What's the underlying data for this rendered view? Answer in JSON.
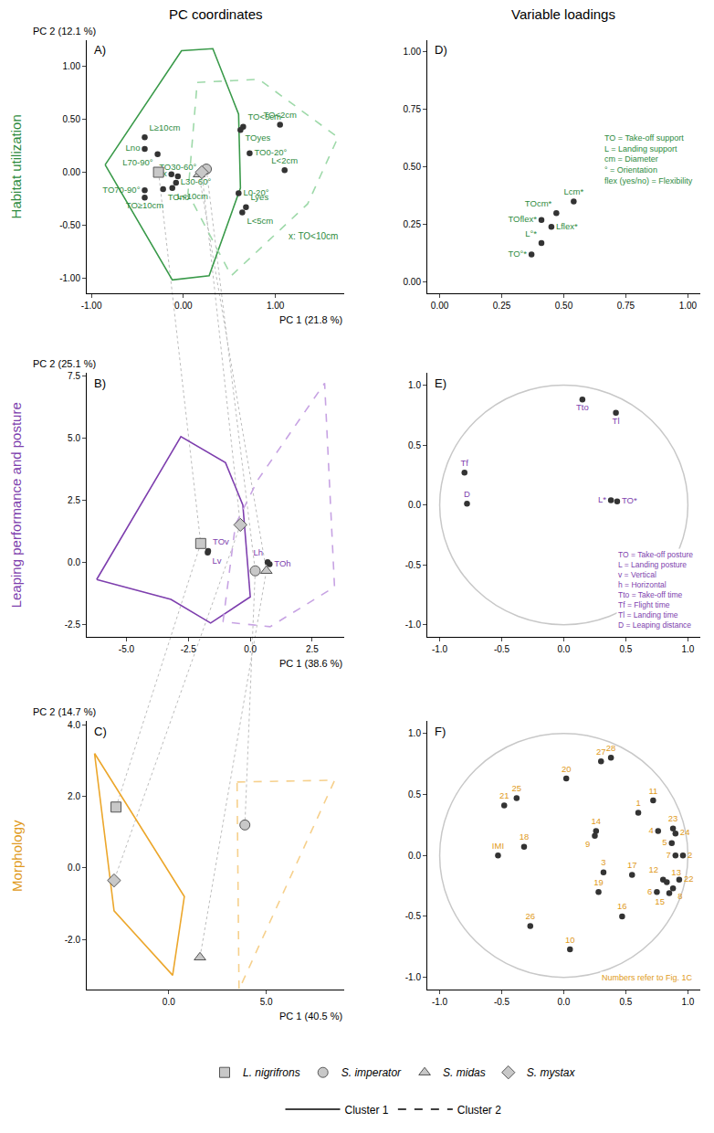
{
  "legend": "bottom",
  "legend_series": [
    {
      "name": "Cluster 1",
      "line_style": "solid",
      "color": "#000000"
    },
    {
      "name": "Cluster 2",
      "line_style": "dashed",
      "color": "#000000"
    }
  ],
  "chart_data": [
    {
      "panel": "A)",
      "type": "scatter",
      "row_title": "Habitat utilization",
      "column_title": "PC coordinates",
      "color": "#2e8b3e",
      "xlabel": "PC 1 (21.8 %)",
      "ylabel": "PC 2 (12.1 %)",
      "xlim": [
        -1.05,
        1.75
      ],
      "ylim": [
        -1.15,
        1.25
      ],
      "xticks": [
        {
          "value": -1,
          "label": "-1.00"
        },
        {
          "value": 0,
          "label": "0.00"
        },
        {
          "value": 1,
          "label": "1.00"
        }
      ],
      "yticks": [
        {
          "value": -1,
          "label": "-1.00"
        },
        {
          "value": -0.5,
          "label": "-0.50"
        },
        {
          "value": 0,
          "label": "0.00"
        },
        {
          "value": 0.5,
          "label": "0.50"
        },
        {
          "value": 1,
          "label": "1.00"
        }
      ],
      "grid": false,
      "notes": [
        "x: TO<10cm"
      ],
      "series": [
        {
          "type": "polygon",
          "name": "Cluster 1",
          "line_style": "solid",
          "color": "#3a9a4a",
          "x": [
            -0.85,
            -0.02,
            0.32,
            0.6,
            0.62,
            0.28,
            -0.12
          ],
          "y": [
            0.07,
            1.15,
            1.17,
            0.55,
            -0.15,
            -0.98,
            -1.02
          ]
        },
        {
          "type": "polygon",
          "name": "Cluster 2",
          "line_style": "dashed",
          "color": "#9ed9a9",
          "x": [
            0.15,
            0.82,
            1.68,
            1.35,
            0.52,
            0.05
          ],
          "y": [
            0.85,
            0.88,
            0.33,
            -0.3,
            -0.98,
            -0.2
          ]
        },
        {
          "type": "points",
          "color": "#333333",
          "labels": [
            "L≥10cm",
            "Lno",
            "L70-90°",
            "TO70-90°",
            "TO≥10cm",
            "TOno",
            "TO30-60°",
            "x",
            "L30-60°",
            "L<10cm",
            "TO0-20°",
            "L0-20°",
            "TO<5cm",
            "TOyes",
            "TO<2cm",
            "L<2cm",
            "Lyes",
            "L<5cm"
          ],
          "x": [
            -0.42,
            -0.42,
            -0.28,
            -0.42,
            -0.42,
            -0.22,
            -0.06,
            -0.13,
            -0.08,
            -0.12,
            0.72,
            0.6,
            0.65,
            0.62,
            1.05,
            1.1,
            0.68,
            0.64
          ],
          "y": [
            0.33,
            0.22,
            0.17,
            -0.17,
            -0.24,
            -0.16,
            -0.04,
            -0.02,
            -0.1,
            -0.15,
            0.18,
            -0.2,
            0.43,
            0.4,
            0.45,
            0.02,
            -0.33,
            -0.38
          ]
        },
        {
          "type": "species",
          "name": "L. nigrifrons",
          "marker": "square",
          "color": "#c8c8c8",
          "x": [
            -0.27
          ],
          "y": [
            0.0
          ]
        },
        {
          "type": "species",
          "name": "S. imperator",
          "marker": "circle",
          "color": "#c8c8c8",
          "x": [
            0.25
          ],
          "y": [
            0.03
          ]
        },
        {
          "type": "species",
          "name": "S. midas",
          "marker": "triangle",
          "color": "#c8c8c8",
          "x": [
            0.17
          ],
          "y": [
            -0.02
          ]
        },
        {
          "type": "species",
          "name": "S. mystax",
          "marker": "diamond",
          "color": "#c8c8c8",
          "x": [
            0.2
          ],
          "y": [
            0.0
          ]
        }
      ]
    },
    {
      "panel": "D)",
      "type": "scatter",
      "column_title": "Variable loadings",
      "color": "#2e8b3e",
      "xlim": [
        -0.05,
        1.05
      ],
      "ylim": [
        -0.05,
        1.05
      ],
      "xticks": [
        {
          "value": 0,
          "label": "0.00"
        },
        0.25,
        {
          "value": 0.5,
          "label": "0.50"
        },
        0.75,
        {
          "value": 1,
          "label": "1.00"
        }
      ],
      "yticks": [
        {
          "value": 0,
          "label": "0.00"
        },
        0.25,
        {
          "value": 0.5,
          "label": "0.50"
        },
        0.75,
        {
          "value": 1,
          "label": "1.00"
        }
      ],
      "grid": false,
      "notes": [
        "TO = Take-off support",
        "L = Landing support",
        "cm = Diameter",
        "° = Orientation",
        "flex (yes/no) = Flexibility"
      ],
      "series": [
        {
          "type": "points",
          "color": "#333333",
          "labels": [
            "Lcm*",
            "TOcm*",
            "TOflex*",
            "Lflex*",
            "L°*",
            "TO°*"
          ],
          "x": [
            0.54,
            0.47,
            0.41,
            0.45,
            0.41,
            0.37
          ],
          "y": [
            0.35,
            0.3,
            0.27,
            0.24,
            0.17,
            0.12
          ]
        }
      ]
    },
    {
      "panel": "B)",
      "type": "scatter",
      "row_title": "Leaping performance and posture",
      "color": "#7e3fae",
      "xlabel": "PC 1 (38.6 %)",
      "ylabel": "PC 2 (25.1 %)",
      "xlim": [
        -6.6,
        3.8
      ],
      "ylim": [
        -3.0,
        7.6
      ],
      "xticks": [
        {
          "value": -5,
          "label": "-5.0"
        },
        -2.5,
        {
          "value": 0,
          "label": "0.0"
        },
        2.5
      ],
      "yticks": [
        -2.5,
        {
          "value": 0,
          "label": "0.0"
        },
        2.5,
        {
          "value": 5,
          "label": "5.0"
        },
        7.5
      ],
      "grid": false,
      "series": [
        {
          "type": "polygon",
          "name": "Cluster 1",
          "line_style": "solid",
          "color": "#7e3fae",
          "x": [
            -6.2,
            -2.8,
            -1.0,
            -0.3,
            0.0,
            -1.6,
            -3.2
          ],
          "y": [
            -0.7,
            5.05,
            4.0,
            2.3,
            -1.4,
            -2.45,
            -1.5
          ]
        },
        {
          "type": "polygon",
          "name": "Cluster 2",
          "line_style": "dashed",
          "color": "#c7a3e3",
          "x": [
            -1.1,
            -0.6,
            0.3,
            3.0,
            3.4,
            0.8
          ],
          "y": [
            -2.4,
            1.5,
            3.3,
            7.2,
            -1.0,
            -2.6
          ]
        },
        {
          "type": "points",
          "color": "#333333",
          "labels": [
            "TOv",
            "Lv",
            "Lh",
            "TOh"
          ],
          "x": [
            -1.7,
            -1.72,
            0.7,
            0.78
          ],
          "y": [
            0.45,
            0.38,
            0.0,
            -0.08
          ]
        },
        {
          "type": "species",
          "name": "L. nigrifrons",
          "marker": "square",
          "color": "#c8c8c8",
          "x": [
            -2.0
          ],
          "y": [
            0.75
          ]
        },
        {
          "type": "species",
          "name": "S. imperator",
          "marker": "circle",
          "color": "#c8c8c8",
          "x": [
            0.2
          ],
          "y": [
            -0.35
          ]
        },
        {
          "type": "species",
          "name": "S. midas",
          "marker": "triangle",
          "color": "#c8c8c8",
          "x": [
            0.65
          ],
          "y": [
            -0.35
          ]
        },
        {
          "type": "species",
          "name": "S. mystax",
          "marker": "diamond",
          "color": "#c8c8c8",
          "x": [
            -0.4
          ],
          "y": [
            1.5
          ]
        }
      ]
    },
    {
      "panel": "E)",
      "type": "scatter",
      "color": "#7e3fae",
      "xlim": [
        -1.1,
        1.1
      ],
      "ylim": [
        -1.1,
        1.1
      ],
      "circle_radius": 1,
      "xticks": [
        {
          "value": -1,
          "label": "-1.0"
        },
        -0.5,
        {
          "value": 0,
          "label": "0.0"
        },
        0.5,
        {
          "value": 1,
          "label": "1.0"
        }
      ],
      "yticks": [
        {
          "value": -1,
          "label": "-1.0"
        },
        -0.5,
        {
          "value": 0,
          "label": "0.0"
        },
        0.5,
        {
          "value": 1,
          "label": "1.0"
        }
      ],
      "grid": false,
      "notes": [
        "TO = Take-off posture",
        "L = Landing posture",
        "v = Vertical",
        "h = Horizontal",
        "Tto = Take-off time",
        "Tf = Flight time",
        "Tl = Landing time",
        "D = Leaping distance"
      ],
      "series": [
        {
          "type": "points",
          "color": "#333333",
          "labels": [
            "Tto",
            "Tl",
            "Tf",
            "D",
            "L*",
            "TO*"
          ],
          "x": [
            0.15,
            0.42,
            -0.8,
            -0.78,
            0.38,
            0.43
          ],
          "y": [
            0.88,
            0.77,
            0.27,
            0.01,
            0.04,
            0.03
          ]
        }
      ]
    },
    {
      "panel": "C)",
      "type": "scatter",
      "row_title": "Morphology",
      "color": "#e09a20",
      "xlabel": "PC 1 (40.5 %)",
      "ylabel": "PC 2 (14.7 %)",
      "xlim": [
        -4.2,
        9.0
      ],
      "ylim": [
        -3.4,
        4.1
      ],
      "xticks": [
        {
          "value": 0,
          "label": "0.0"
        },
        {
          "value": 5,
          "label": "5.0"
        }
      ],
      "yticks": [
        {
          "value": -2,
          "label": "-2.0"
        },
        {
          "value": 0,
          "label": "0.0"
        },
        {
          "value": 2,
          "label": "2.0"
        },
        {
          "value": 4,
          "label": "4.0"
        }
      ],
      "grid": false,
      "series": [
        {
          "type": "polygon",
          "name": "Cluster 1",
          "line_style": "solid",
          "color": "#eca72c",
          "x": [
            -3.8,
            0.8,
            0.2,
            -2.8
          ],
          "y": [
            3.2,
            -0.8,
            -3.0,
            -1.2
          ]
        },
        {
          "type": "polygon",
          "name": "Cluster 2",
          "line_style": "dashed",
          "color": "#f6d08c",
          "x": [
            3.5,
            8.5,
            3.6
          ],
          "y": [
            2.4,
            2.45,
            -3.4
          ]
        },
        {
          "type": "species",
          "name": "L. nigrifrons",
          "marker": "square",
          "color": "#c8c8c8",
          "x": [
            -2.7
          ],
          "y": [
            1.7
          ]
        },
        {
          "type": "species",
          "name": "S. imperator",
          "marker": "circle",
          "color": "#c8c8c8",
          "x": [
            3.9
          ],
          "y": [
            1.2
          ]
        },
        {
          "type": "species",
          "name": "S. midas",
          "marker": "triangle",
          "color": "#c8c8c8",
          "x": [
            1.6
          ],
          "y": [
            -2.5
          ]
        },
        {
          "type": "species",
          "name": "S. mystax",
          "marker": "diamond",
          "color": "#c8c8c8",
          "x": [
            -2.8
          ],
          "y": [
            -0.35
          ]
        }
      ]
    },
    {
      "panel": "F)",
      "type": "scatter",
      "color": "#e09a20",
      "xlim": [
        -1.1,
        1.1
      ],
      "ylim": [
        -1.1,
        1.1
      ],
      "circle_radius": 1,
      "xticks": [
        {
          "value": -1,
          "label": "-1.0"
        },
        -0.5,
        {
          "value": 0,
          "label": "0.0"
        },
        0.5,
        {
          "value": 1,
          "label": "1.0"
        }
      ],
      "yticks": [
        {
          "value": -1,
          "label": "-1.0"
        },
        -0.5,
        {
          "value": 0,
          "label": "0.0"
        },
        0.5,
        {
          "value": 1,
          "label": "1.0"
        }
      ],
      "grid": false,
      "notes": [
        "Numbers refer to Fig. 1C"
      ],
      "series": [
        {
          "type": "points",
          "color": "#333333",
          "labels": [
            "27",
            "28",
            "20",
            "21",
            "25",
            "11",
            "1",
            "23",
            "4",
            "24",
            "5",
            "7",
            "2",
            "14",
            "9",
            "IMI",
            "18",
            "3",
            "17",
            "12",
            "13",
            "22",
            "8",
            "15",
            "6",
            "19",
            "16",
            "26",
            "10"
          ],
          "x": [
            0.3,
            0.38,
            0.02,
            -0.48,
            -0.38,
            0.72,
            0.6,
            0.88,
            0.76,
            0.9,
            0.87,
            0.9,
            0.96,
            0.26,
            0.25,
            -0.53,
            -0.32,
            0.32,
            0.55,
            0.8,
            0.83,
            0.93,
            0.88,
            0.85,
            0.75,
            0.28,
            0.47,
            -0.27,
            0.05
          ],
          "y": [
            0.77,
            0.8,
            0.63,
            0.41,
            0.47,
            0.45,
            0.35,
            0.22,
            0.2,
            0.18,
            0.1,
            0.0,
            0.0,
            0.2,
            0.16,
            0.0,
            0.07,
            -0.14,
            -0.16,
            -0.2,
            -0.22,
            -0.2,
            -0.27,
            -0.31,
            -0.3,
            -0.3,
            -0.5,
            -0.58,
            -0.77
          ]
        }
      ]
    }
  ]
}
